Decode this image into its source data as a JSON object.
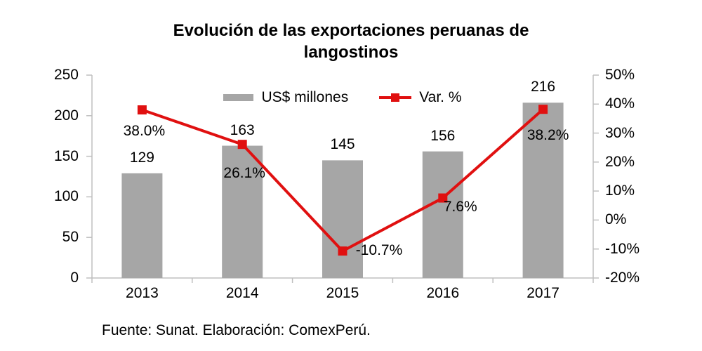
{
  "footer": {
    "source_text": "Fuente: Sunat. Elaboración: ComexPerú."
  },
  "chart_data": {
    "type": "bar+line combo",
    "title": "Evolución de las exportaciones peruanas de langostinos",
    "categories": [
      "2013",
      "2014",
      "2015",
      "2016",
      "2017"
    ],
    "series": [
      {
        "name": "US$ millones",
        "type": "bar",
        "axis": "left",
        "color": "#a6a6a6",
        "values": [
          129,
          163,
          145,
          156,
          216
        ],
        "data_labels": [
          "129",
          "163",
          "145",
          "156",
          "216"
        ]
      },
      {
        "name": "Var. %",
        "type": "line",
        "axis": "right",
        "color": "#e01010",
        "marker": "square",
        "values": [
          38.0,
          26.1,
          -10.7,
          7.6,
          38.2
        ],
        "data_labels": [
          "38.0%",
          "26.1%",
          "-10.7%",
          "7.6%",
          "38.2%"
        ]
      }
    ],
    "left_axis": {
      "min": 0,
      "max": 250,
      "step": 50,
      "tick_labels": [
        "250",
        "200",
        "150",
        "100",
        "50",
        "0"
      ]
    },
    "right_axis": {
      "min": -20,
      "max": 50,
      "step": 10,
      "tick_labels": [
        "50%",
        "40%",
        "30%",
        "20%",
        "10%",
        "0%",
        "-10%",
        "-20%"
      ]
    },
    "legend_position": "top-center",
    "grid": false,
    "axis_line_color": "#bfbfbf",
    "text_color": "#000000"
  }
}
